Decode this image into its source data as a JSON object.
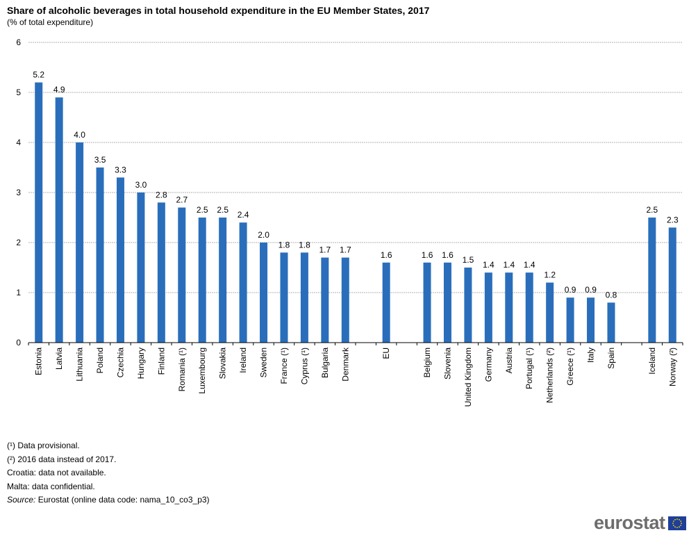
{
  "title": "Share of alcoholic beverages in total household expenditure in the EU Member States, 2017",
  "subtitle": "(% of total expenditure)",
  "notes": {
    "n1": "(¹) Data provisional.",
    "n2": "(²) 2016 data instead of 2017.",
    "n3": "Croatia: data not available.",
    "n4": "Malta: data confidential.",
    "source_label": "Source:",
    "source_text": " Eurostat (online data code: nama_10_co3_p3)"
  },
  "logo": {
    "text": "eurostat"
  },
  "chart_data": {
    "type": "bar",
    "title": "Share of alcoholic beverages in total household expenditure in the EU Member States, 2017",
    "ylabel": "(% of total expenditure)",
    "ylim": [
      0,
      6
    ],
    "yticks": [
      0,
      1,
      2,
      3,
      4,
      5,
      6
    ],
    "grid": true,
    "bar_color": "#2a6ebb",
    "categories": [
      "Estonia",
      "Latvia",
      "Lithuania",
      "Poland",
      "Czechia",
      "Hungary",
      "Finland",
      "Romania (¹)",
      "Luxembourg",
      "Slovakia",
      "Ireland",
      "Sweden",
      "France (¹)",
      "Cyprus (¹)",
      "Bulgaria",
      "Denmark",
      "",
      "EU",
      "",
      "Belgium",
      "Slovenia",
      "United Kingdom",
      "Germany",
      "Austria",
      "Portugal (¹)",
      "Netherlands (²)",
      "Greece (¹)",
      "Italy",
      "Spain",
      "",
      "Iceland",
      "Norway (²)"
    ],
    "values": [
      5.2,
      4.9,
      4.0,
      3.5,
      3.3,
      3.0,
      2.8,
      2.7,
      2.5,
      2.5,
      2.4,
      2.0,
      1.8,
      1.8,
      1.7,
      1.7,
      null,
      1.6,
      null,
      1.6,
      1.6,
      1.5,
      1.4,
      1.4,
      1.4,
      1.2,
      0.9,
      0.9,
      0.8,
      null,
      2.5,
      2.3
    ],
    "data_labels": [
      "5.2",
      "4.9",
      "4.0",
      "3.5",
      "3.3",
      "3.0",
      "2.8",
      "2.7",
      "2.5",
      "2.5",
      "2.4",
      "2.0",
      "1.8",
      "1.8",
      "1.7",
      "1.7",
      "",
      "1.6",
      "",
      "1.6",
      "1.6",
      "1.5",
      "1.4",
      "1.4",
      "1.4",
      "1.2",
      "0.9",
      "0.9",
      "0.8",
      "",
      "2.5",
      "2.3"
    ]
  }
}
